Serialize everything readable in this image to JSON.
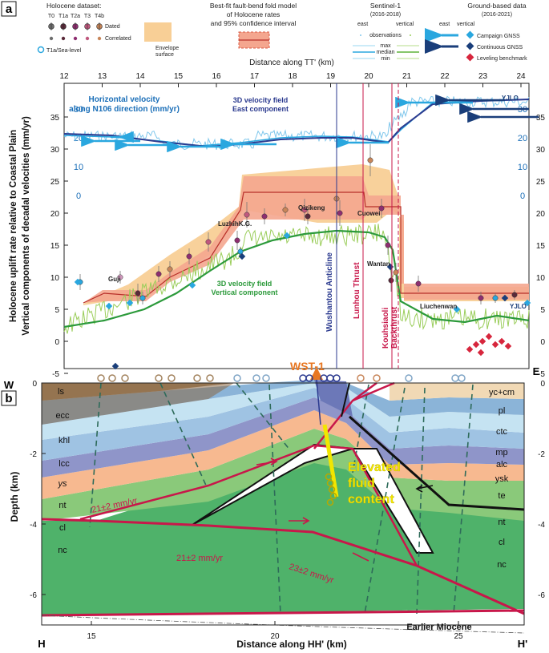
{
  "panel_a": {
    "label": "a",
    "legend": {
      "holocene_title": "Holocene dataset:",
      "terrace_codes": [
        "T0",
        "T1a",
        "T2a",
        "T3",
        "T4b"
      ],
      "dated": "Dated",
      "correlated": "Correlated",
      "sea_level": "T1a/Sea-level",
      "envelope": "Envelope\nsurface",
      "fold_model_title": "Best-fit fault-bend fold model\nof Holocene rates\nand 95% confidence interval",
      "sentinel_title": "Sentinel-1",
      "sentinel_years": "(2016-2018)",
      "sentinel_east": "east",
      "sentinel_vertical": "vertical",
      "observations": "observations",
      "max": "max",
      "median": "median",
      "min": "min",
      "ground_title": "Ground-based data",
      "ground_years": "(2016-2021)",
      "ground_east": "east",
      "ground_vertical": "vertical",
      "campaign_gnss": "Campaign GNSS",
      "continuous_gnss": "Continuous GNSS",
      "leveling": "Leveling benchmark"
    },
    "top_axis_title": "Distance along TT' (km)",
    "top_ticks": [
      "12",
      "13",
      "14",
      "15",
      "16",
      "17",
      "18",
      "19",
      "20",
      "21",
      "22",
      "23",
      "24"
    ],
    "y_ticks": [
      "35",
      "30",
      "25",
      "20",
      "15",
      "10",
      "5",
      "0",
      "-5"
    ],
    "horizontal_scale_ticks": [
      "30",
      "20",
      "10",
      "0"
    ],
    "y_title_1": "Holocene uplift rate relative to Coastal Plain",
    "y_title_2": "Vertical components of decadal velocities (mm/yr)",
    "annotations": {
      "horizontal_velocity": "Horizontal velocity\nalong N106 direction (mm/yr)",
      "velocity_east": "3D velocity field\nEast component",
      "velocity_vertical": "3D velocity field\nVertical component",
      "qizikeng": "Qizikeng",
      "luzhihkg": "LuzhihK.G.",
      "cuowei": "Cuowei",
      "guji": "Guji",
      "wantan": "Wantan",
      "liuchenwan": "Liuchenwan",
      "yjlo_top": "YJLO",
      "yjlo_bottom": "YJLO",
      "wushantou": "Wushantou Anticline",
      "lunhou": "Lunhou Thrust",
      "kouhsiaoli": "Kouhsiaoli\nBackthrust"
    }
  },
  "panel_b": {
    "label": "b",
    "well": "WST-1",
    "corner_w": "W",
    "corner_e": "E",
    "corner_h": "H",
    "corner_h2": "H'",
    "x_axis_title": "Distance along HH' (km)",
    "x_ticks": [
      "15",
      "20",
      "25"
    ],
    "y_title": "Depth (km)",
    "y_ticks": [
      "0",
      "-2",
      "-4",
      "-6"
    ],
    "fluid": "Elevated\nfluid\ncontent",
    "earlier_miocene": "Earlier Miocene",
    "rates": [
      "21±2 mm/yr",
      "21±2 mm/yr",
      "23±2 mm/yr"
    ],
    "layers_west": [
      "ls",
      "ecc",
      "khl",
      "lcc",
      "ys",
      "nt",
      "cl",
      "nc"
    ],
    "layers_east": [
      "yc+cm",
      "pl",
      "ctc",
      "mp",
      "alc",
      "ysk",
      "te",
      "nt",
      "cl",
      "nc"
    ]
  },
  "colors": {
    "east_arrow": "#2aa7df",
    "vertical_green": "#2c9a3b",
    "fold_model": "#e8735a",
    "envelope": "#f8cf96",
    "fault_red": "#c8174a",
    "wst_orange": "#e87722",
    "fluid_yellow": "#f2e600"
  }
}
